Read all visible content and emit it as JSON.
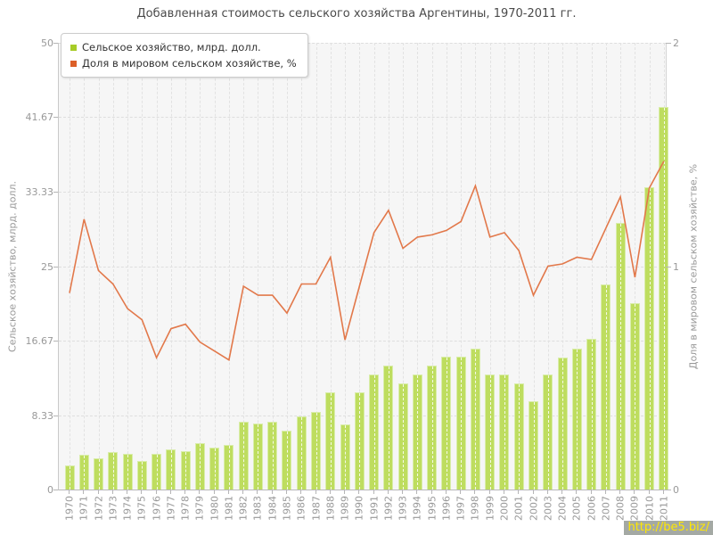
{
  "title": "Добавленная стоимость сельского хозяйства Аргентины, 1970-2011 гг.",
  "watermark": {
    "text": "http://be5.biz/"
  },
  "colors": {
    "bar_fill": "#bedd5f",
    "bar_edge": "#d9edaa",
    "line": "#e2784a",
    "legend_bar_swatch": "#a7cc28",
    "legend_line_swatch": "#dc5f28",
    "plot_bg": "#f6f6f6",
    "grid": "#dedede",
    "tick_text": "#999999",
    "watermark_bg": "#949a94",
    "watermark_text": "#ffe800"
  },
  "chart_data": {
    "type": "combo",
    "title": "Добавленная стоимость сельского хозяйства Аргентины, 1970-2011 гг.",
    "categories": [
      "1970",
      "1971",
      "1972",
      "1973",
      "1974",
      "1975",
      "1976",
      "1977",
      "1978",
      "1979",
      "1980",
      "1981",
      "1982",
      "1983",
      "1984",
      "1985",
      "1986",
      "1987",
      "1988",
      "1989",
      "1990",
      "1991",
      "1992",
      "1993",
      "1994",
      "1995",
      "1996",
      "1997",
      "1998",
      "1999",
      "2000",
      "2001",
      "2002",
      "2003",
      "2004",
      "2005",
      "2006",
      "2007",
      "2008",
      "2009",
      "2010",
      "2011"
    ],
    "series": [
      {
        "name": "Сельское хозяйство, млрд. долл.",
        "type": "bar",
        "axis": "left",
        "values": [
          2.7,
          3.9,
          3.5,
          4.2,
          4.0,
          3.2,
          4.0,
          4.5,
          4.3,
          5.2,
          4.7,
          5.0,
          7.6,
          7.4,
          7.6,
          6.6,
          8.2,
          8.7,
          10.9,
          7.3,
          10.9,
          12.9,
          13.9,
          11.9,
          12.9,
          13.9,
          14.9,
          14.9,
          15.8,
          12.9,
          12.9,
          11.9,
          9.9,
          12.9,
          14.8,
          15.8,
          16.9,
          23.0,
          29.8,
          20.9,
          33.8,
          42.8
        ]
      },
      {
        "name": "Доля в мировом сельском хозяйстве, %",
        "type": "line",
        "axis": "right",
        "values": [
          0.88,
          1.21,
          0.98,
          0.92,
          0.81,
          0.76,
          0.59,
          0.72,
          0.74,
          0.66,
          0.62,
          0.58,
          0.91,
          0.87,
          0.87,
          0.79,
          0.92,
          0.92,
          1.04,
          0.67,
          0.91,
          1.15,
          1.25,
          1.08,
          1.13,
          1.14,
          1.16,
          1.2,
          1.36,
          1.13,
          1.15,
          1.07,
          0.87,
          1.0,
          1.01,
          1.04,
          1.03,
          1.17,
          1.31,
          0.95,
          1.35,
          1.47
        ]
      }
    ],
    "left_axis": {
      "label": "Сельское хозяйство, млрд. долл.",
      "range": [
        0,
        50
      ],
      "ticks": [
        {
          "value": 0,
          "label": "0"
        },
        {
          "value": 8.33,
          "label": "8.33"
        },
        {
          "value": 16.67,
          "label": "16.67"
        },
        {
          "value": 25,
          "label": "25"
        },
        {
          "value": 33.33,
          "label": "33.33"
        },
        {
          "value": 41.67,
          "label": "41.67"
        },
        {
          "value": 50,
          "label": "50"
        }
      ]
    },
    "right_axis": {
      "label": "Доля в мировом сельском хозяйстве, %",
      "range": [
        0,
        2
      ],
      "ticks": [
        {
          "value": 0,
          "label": "0"
        },
        {
          "value": 1,
          "label": "1"
        },
        {
          "value": 2,
          "label": "2"
        }
      ]
    },
    "grid": true,
    "legend_position": "top-left"
  }
}
